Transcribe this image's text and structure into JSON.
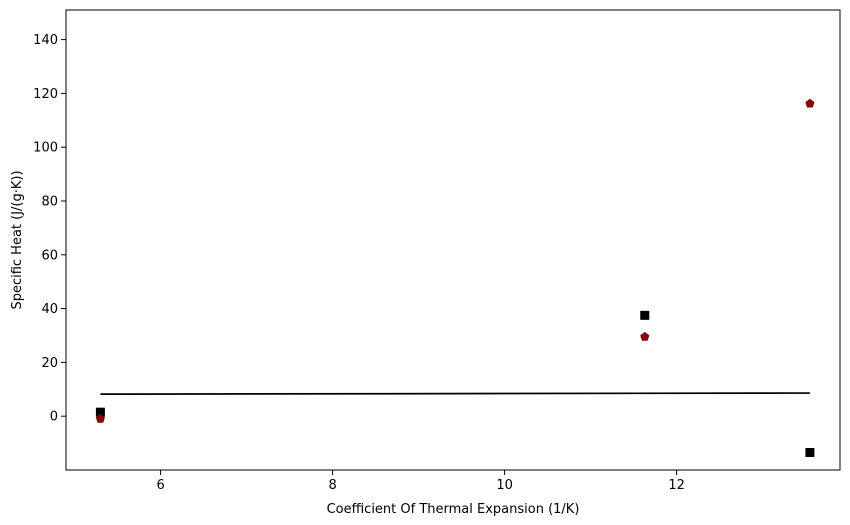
{
  "chart_data": {
    "type": "scatter",
    "xlabel": "Coefficient Of Thermal Expansion (1/K)",
    "ylabel": "Specific Heat (J/(g·K))",
    "xlim": [
      4.9,
      13.9
    ],
    "ylim": [
      -20,
      151
    ],
    "xticks": [
      6,
      8,
      10,
      12
    ],
    "yticks": [
      0,
      20,
      40,
      60,
      80,
      100,
      120,
      140
    ],
    "grid": false,
    "legend": "none",
    "series": [
      {
        "marker": "square",
        "color": "#000000",
        "points": [
          {
            "x": 5.3,
            "y": 1.5
          },
          {
            "x": 11.63,
            "y": 37.5
          },
          {
            "x": 13.55,
            "y": -13.5
          }
        ]
      },
      {
        "marker": "pentagon",
        "color": "#8b0000",
        "points": [
          {
            "x": 5.3,
            "y": -1.0
          },
          {
            "x": 11.63,
            "y": 29.5
          },
          {
            "x": 13.55,
            "y": 116.2
          }
        ]
      }
    ],
    "trend_line": {
      "color": "#000000",
      "points": [
        {
          "x": 5.3,
          "y": 8.2
        },
        {
          "x": 13.55,
          "y": 8.6
        }
      ]
    }
  }
}
